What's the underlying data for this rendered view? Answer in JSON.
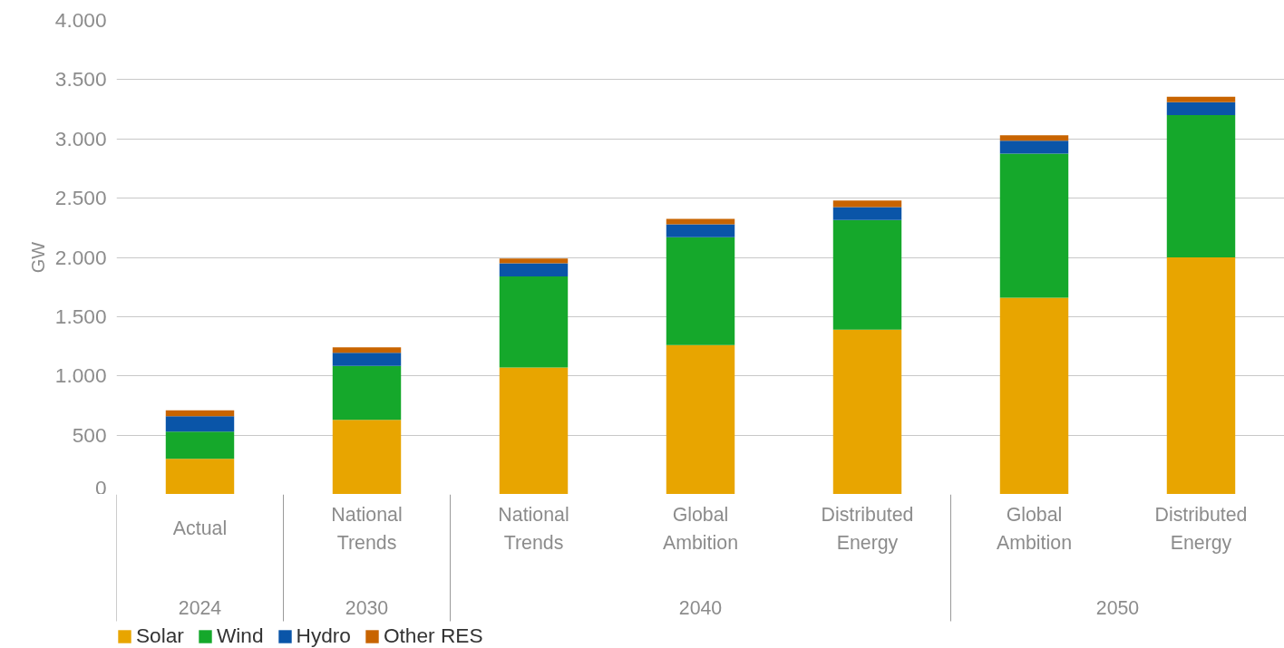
{
  "chart_data": {
    "type": "bar",
    "stacked": true,
    "ylabel": "GW",
    "categories": [
      "Actual",
      "National Trends",
      "National Trends",
      "Global Ambition",
      "Distributed Energy",
      "Global Ambition",
      "Distributed Energy"
    ],
    "series": [
      {
        "name": "Solar",
        "color": "#e8a500",
        "values": [
          300,
          630,
          1070,
          1260,
          1390,
          1660,
          2000
        ]
      },
      {
        "name": "Wind",
        "color": "#15a82b",
        "values": [
          230,
          455,
          770,
          910,
          925,
          1215,
          1200
        ]
      },
      {
        "name": "Hydro",
        "color": "#0a55a8",
        "values": [
          130,
          110,
          110,
          110,
          110,
          110,
          110
        ]
      },
      {
        "name": "Other RES",
        "color": "#c86400",
        "values": [
          50,
          45,
          40,
          45,
          55,
          45,
          45
        ]
      }
    ],
    "annotations": [
      "2024",
      "2030",
      "2040",
      "2050"
    ],
    "ylim": [
      0,
      4000
    ],
    "yticks": [
      {
        "value": 0,
        "label": "0"
      },
      {
        "value": 500,
        "label": "500"
      },
      {
        "value": 1000,
        "label": "1.000"
      },
      {
        "value": 1500,
        "label": "1.500"
      },
      {
        "value": 2000,
        "label": "2.000"
      },
      {
        "value": 2500,
        "label": "2.500"
      },
      {
        "value": 3000,
        "label": "3.000"
      },
      {
        "value": 3500,
        "label": "3.500"
      },
      {
        "value": 4000,
        "label": "4.000"
      }
    ],
    "grid": "y",
    "legend": "bottom left"
  }
}
